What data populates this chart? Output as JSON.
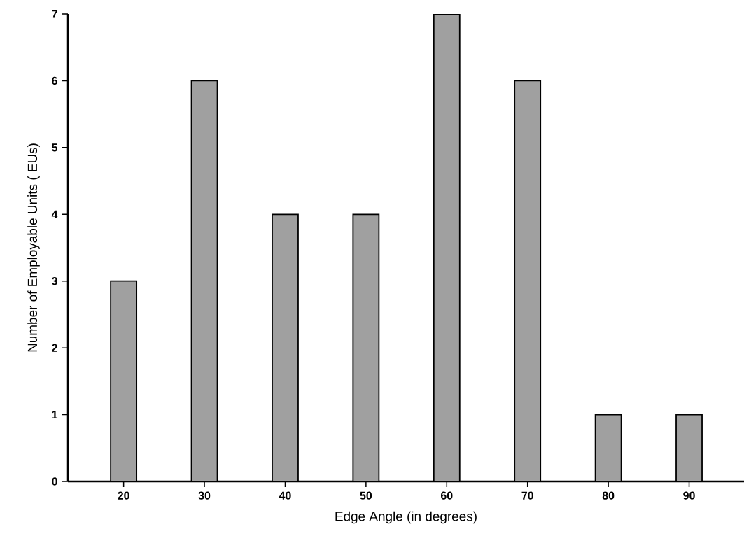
{
  "chart_data": {
    "type": "bar",
    "xlabel": "Edge Angle (in degrees)",
    "ylabel": "Number of Employable Units ( EUs)",
    "categories": [
      "20",
      "30",
      "40",
      "50",
      "60",
      "70",
      "80",
      "90"
    ],
    "values": [
      3,
      6,
      4,
      4,
      7,
      6,
      1,
      1
    ],
    "color": "#a0a0a0",
    "ylim": [
      0,
      7
    ],
    "yticks": [
      0,
      1,
      2,
      3,
      4,
      5,
      6,
      7
    ]
  }
}
